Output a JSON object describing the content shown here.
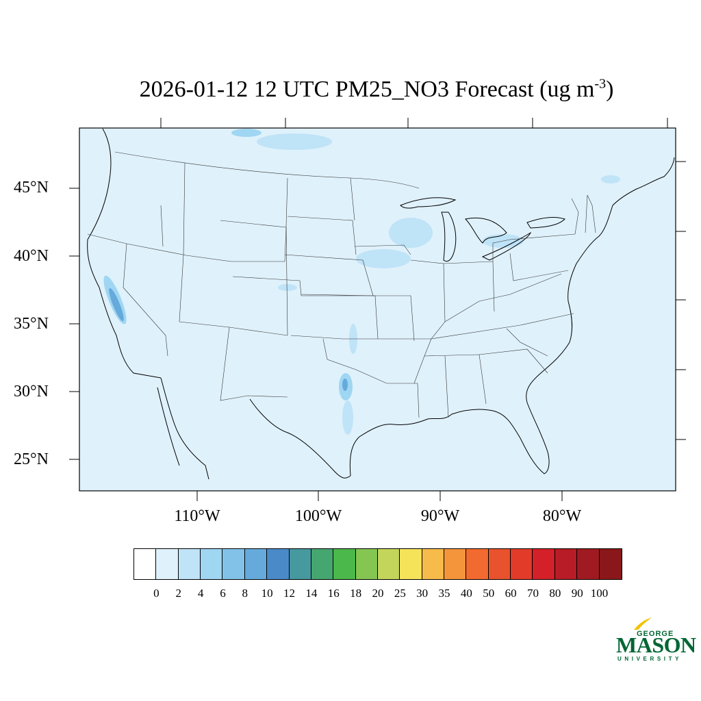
{
  "title": {
    "text": "2026-01-12 12 UTC PM25_NO3 Forecast (ug m",
    "superscript": "-3",
    "suffix": ")"
  },
  "map": {
    "background_color": "#dff1fb",
    "lat_labels": [
      "45°N",
      "40°N",
      "35°N",
      "30°N",
      "25°N"
    ],
    "lon_labels": [
      "110°W",
      "100°W",
      "90°W",
      "80°W"
    ]
  },
  "colorbar": {
    "ticks": [
      "0",
      "2",
      "4",
      "6",
      "8",
      "10",
      "12",
      "14",
      "16",
      "18",
      "20",
      "25",
      "30",
      "35",
      "40",
      "50",
      "60",
      "70",
      "80",
      "90",
      "100"
    ],
    "colors": [
      "#ffffff",
      "#dff1fb",
      "#bfe3f7",
      "#9fd6f2",
      "#83c2e8",
      "#66aadc",
      "#4a8ac9",
      "#46999e",
      "#46a66f",
      "#4ab84a",
      "#85c653",
      "#c3d65b",
      "#f5e35a",
      "#f6bb4a",
      "#f4953c",
      "#f26a30",
      "#e8532d",
      "#e23b2a",
      "#d42029",
      "#b81c26",
      "#a01a22",
      "#8a1719"
    ]
  },
  "logo": {
    "line1": "GEORGE",
    "line2": "MASON",
    "line3": "UNIVERSITY"
  }
}
